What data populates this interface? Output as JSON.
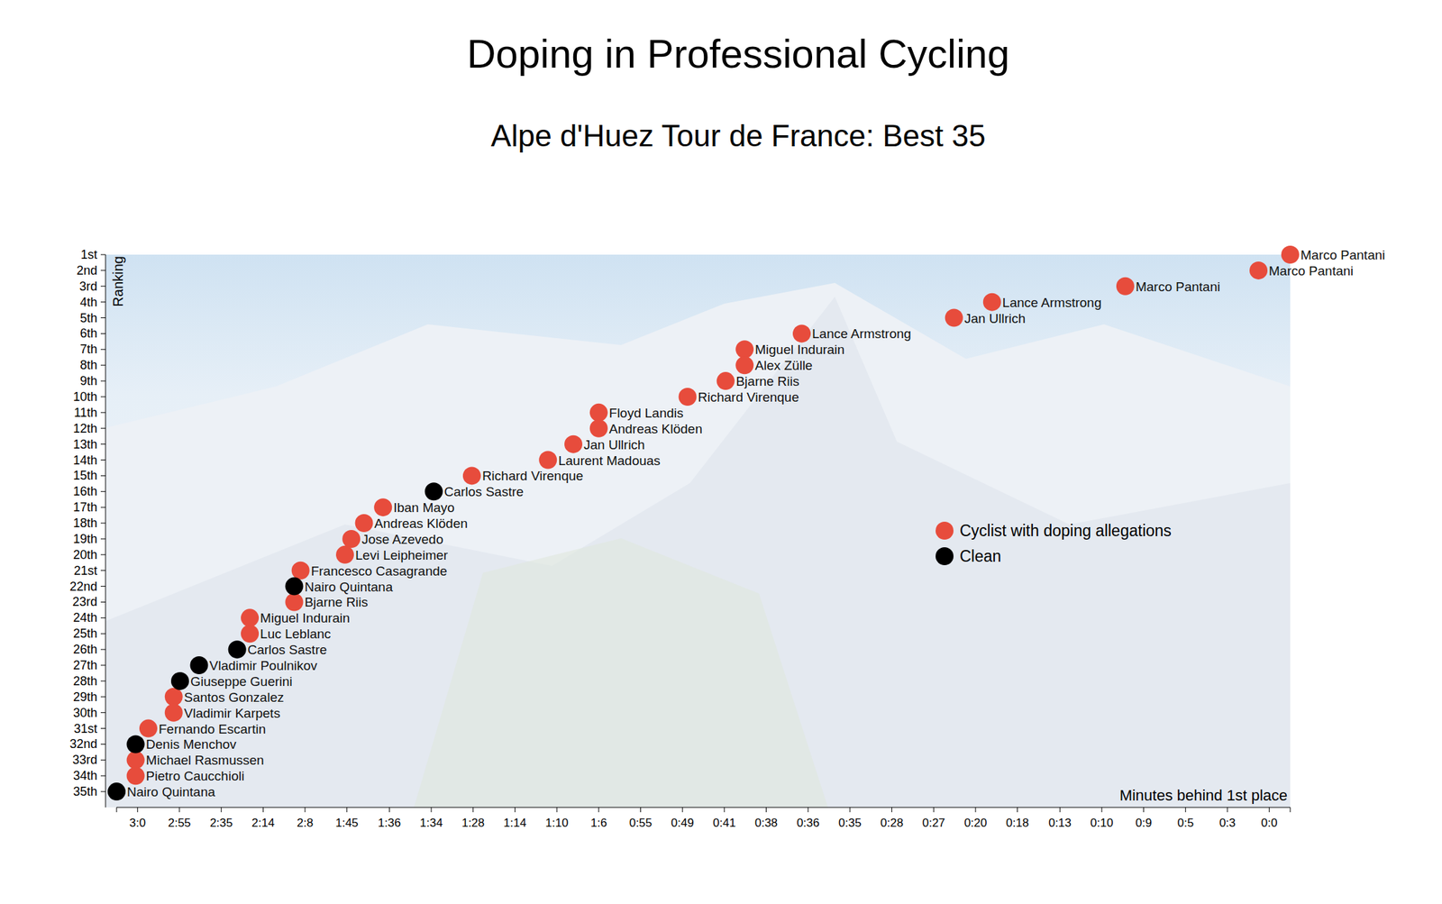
{
  "chart_data": {
    "type": "scatter",
    "title": "Doping in Professional Cycling",
    "subtitle": "Alpe d'Huez Tour de France: Best 35",
    "x_label": "Minutes behind 1st place",
    "y_label": "Ranking",
    "xlim": [
      185,
      0
    ],
    "ylim": [
      36,
      1
    ],
    "xticks": [
      {
        "value": 181.7,
        "label": "3:0"
      },
      {
        "value": 175.1,
        "label": "2:55"
      },
      {
        "value": 168.5,
        "label": "2:35"
      },
      {
        "value": 161.9,
        "label": "2:14"
      },
      {
        "value": 155.3,
        "label": "2:8"
      },
      {
        "value": 148.7,
        "label": "1:45"
      },
      {
        "value": 142.0,
        "label": "1:36"
      },
      {
        "value": 135.4,
        "label": "1:34"
      },
      {
        "value": 128.8,
        "label": "1:28"
      },
      {
        "value": 122.2,
        "label": "1:14"
      },
      {
        "value": 115.6,
        "label": "1:10"
      },
      {
        "value": 109.0,
        "label": "1:6"
      },
      {
        "value": 102.4,
        "label": "0:55"
      },
      {
        "value": 95.8,
        "label": "0:49"
      },
      {
        "value": 89.2,
        "label": "0:41"
      },
      {
        "value": 82.6,
        "label": "0:38"
      },
      {
        "value": 76.0,
        "label": "0:36"
      },
      {
        "value": 69.4,
        "label": "0:35"
      },
      {
        "value": 62.8,
        "label": "0:28"
      },
      {
        "value": 56.2,
        "label": "0:27"
      },
      {
        "value": 49.6,
        "label": "0:20"
      },
      {
        "value": 43.0,
        "label": "0:18"
      },
      {
        "value": 36.3,
        "label": "0:13"
      },
      {
        "value": 29.7,
        "label": "0:10"
      },
      {
        "value": 23.1,
        "label": "0:9"
      },
      {
        "value": 16.5,
        "label": "0:5"
      },
      {
        "value": 9.9,
        "label": "0:3"
      },
      {
        "value": 3.3,
        "label": "0:0"
      }
    ],
    "yticks": [
      {
        "value": 1,
        "label": "1st"
      },
      {
        "value": 2,
        "label": "2nd"
      },
      {
        "value": 3,
        "label": "3rd"
      },
      {
        "value": 4,
        "label": "4th"
      },
      {
        "value": 5,
        "label": "5th"
      },
      {
        "value": 6,
        "label": "6th"
      },
      {
        "value": 7,
        "label": "7th"
      },
      {
        "value": 8,
        "label": "8th"
      },
      {
        "value": 9,
        "label": "9th"
      },
      {
        "value": 10,
        "label": "10th"
      },
      {
        "value": 11,
        "label": "11th"
      },
      {
        "value": 12,
        "label": "12th"
      },
      {
        "value": 13,
        "label": "13th"
      },
      {
        "value": 14,
        "label": "14th"
      },
      {
        "value": 15,
        "label": "15th"
      },
      {
        "value": 16,
        "label": "16th"
      },
      {
        "value": 17,
        "label": "17th"
      },
      {
        "value": 18,
        "label": "18th"
      },
      {
        "value": 19,
        "label": "19th"
      },
      {
        "value": 20,
        "label": "20th"
      },
      {
        "value": 21,
        "label": "21st"
      },
      {
        "value": 22,
        "label": "22nd"
      },
      {
        "value": 23,
        "label": "23rd"
      },
      {
        "value": 24,
        "label": "24th"
      },
      {
        "value": 25,
        "label": "25th"
      },
      {
        "value": 26,
        "label": "26th"
      },
      {
        "value": 27,
        "label": "27th"
      },
      {
        "value": 28,
        "label": "28th"
      },
      {
        "value": 29,
        "label": "29th"
      },
      {
        "value": 30,
        "label": "30th"
      },
      {
        "value": 31,
        "label": "31st"
      },
      {
        "value": 32,
        "label": "32nd"
      },
      {
        "value": 33,
        "label": "33rd"
      },
      {
        "value": 34,
        "label": "34th"
      },
      {
        "value": 35,
        "label": "35th"
      }
    ],
    "series": [
      {
        "name": "Cyclist with doping allegations",
        "color": "#e74c3c",
        "x": [
          0,
          5,
          26,
          47,
          53,
          77,
          86,
          86,
          89,
          95,
          109,
          109,
          113,
          117,
          129,
          143,
          146,
          148,
          149,
          156,
          157,
          164,
          164,
          176,
          176,
          180,
          182,
          182
        ],
        "values": [
          1,
          2,
          3,
          4,
          5,
          6,
          7,
          8,
          9,
          10,
          11,
          12,
          13,
          14,
          15,
          17,
          18,
          19,
          20,
          21,
          23,
          24,
          25,
          29,
          30,
          31,
          33,
          34
        ],
        "labels": [
          "Marco Pantani",
          "Marco Pantani",
          "Marco Pantani",
          "Lance Armstrong",
          "Jan Ullrich",
          "Lance Armstrong",
          "Miguel Indurain",
          "Alex Zülle",
          "Bjarne Riis",
          "Richard Virenque",
          "Floyd Landis",
          "Andreas Klöden",
          "Jan Ullrich",
          "Laurent Madouas",
          "Richard Virenque",
          "Iban Mayo",
          "Andreas Klöden",
          "Jose Azevedo",
          "Levi Leipheimer",
          "Francesco Casagrande",
          "Bjarne Riis",
          "Miguel Indurain",
          "Luc Leblanc",
          "Santos Gonzalez",
          "Vladimir Karpets",
          "Fernando Escartin",
          "Michael Rasmussen",
          "Pietro Caucchioli"
        ]
      },
      {
        "name": "Clean",
        "color": "#000000",
        "x": [
          135,
          157,
          166,
          172,
          175,
          182,
          185
        ],
        "values": [
          16,
          22,
          26,
          27,
          28,
          32,
          35
        ],
        "labels": [
          "Carlos Sastre",
          "Nairo Quintana",
          "Carlos Sastre",
          "Vladimir Poulnikov",
          "Giuseppe Guerini",
          "Denis Menchov",
          "Nairo Quintana"
        ]
      }
    ]
  }
}
